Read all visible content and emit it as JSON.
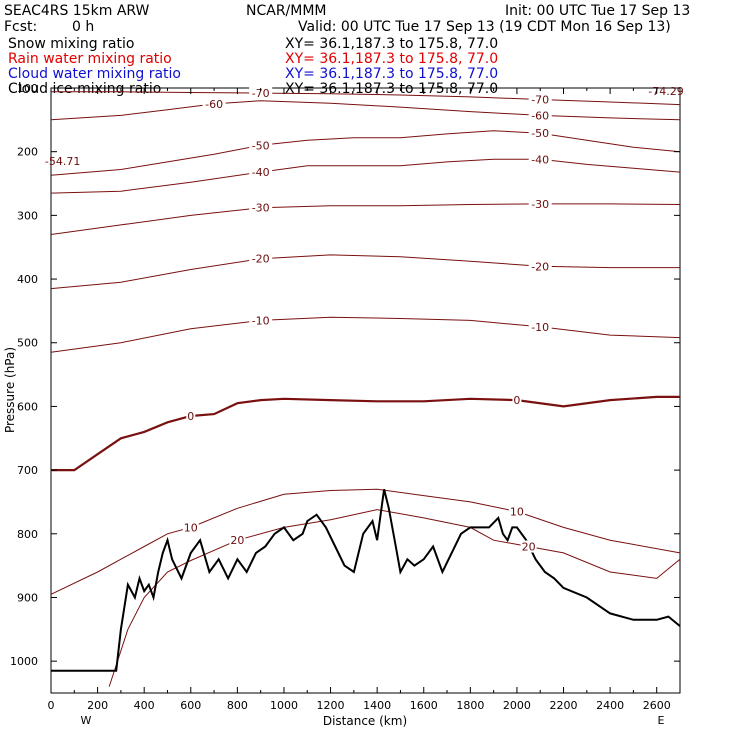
{
  "header": {
    "model": "SEAC4RS 15km ARW",
    "center": "NCAR/MMM",
    "init": "Init: 00 UTC Tue 17 Sep 13",
    "fcst_label": "Fcst:",
    "fcst_value": "0 h",
    "valid": "Valid: 00 UTC Tue 17 Sep 13 (19 CDT Mon 16 Sep 13)",
    "fields": [
      {
        "name": "Snow mixing ratio",
        "xy": "XY=  36.1,187.3 to 175.8, 77.0",
        "color": "#000000"
      },
      {
        "name": "Rain water mixing ratio",
        "xy": "XY=  36.1,187.3 to 175.8, 77.0",
        "color": "#e00000"
      },
      {
        "name": "Cloud water mixing ratio",
        "xy": "XY=  36.1,187.3 to 175.8, 77.0",
        "color": "#1010d0"
      },
      {
        "name": "Cloud ice mixing ratio",
        "xy": "XY=  36.1,187.3 to 175.8, 77.0",
        "color": "#000000"
      }
    ]
  },
  "chart_data": {
    "type": "line",
    "xlabel": "Distance (km)",
    "ylabel": "Pressure (hPa)",
    "xlim": [
      0,
      2700
    ],
    "ylim": [
      1050,
      100
    ],
    "x_ticks": [
      0,
      200,
      400,
      600,
      800,
      1000,
      1200,
      1400,
      1600,
      1800,
      2000,
      2200,
      2400,
      2600
    ],
    "y_ticks": [
      100,
      200,
      300,
      400,
      500,
      600,
      700,
      800,
      900,
      1000
    ],
    "x_end_labels": {
      "left": "W",
      "right": "E"
    },
    "extreme_labels": [
      {
        "text": "-74.29",
        "x": 2640,
        "p": 105
      },
      {
        "text": "-54.71",
        "x": 50,
        "p": 215
      }
    ],
    "isotherm_color": "#7a1010",
    "isotherms": [
      {
        "value": -70,
        "x": [
          0,
          300,
          600,
          900,
          1200,
          1500,
          1800,
          2100,
          2400,
          2700
        ],
        "p": [
          106,
          106,
          107,
          108,
          109,
          111,
          114,
          118,
          122,
          126
        ]
      },
      {
        "value": -60,
        "x": [
          0,
          300,
          500,
          700,
          900,
          1200,
          1500,
          1800,
          2100,
          2400,
          2700
        ],
        "p": [
          150,
          143,
          134,
          125,
          120,
          124,
          130,
          137,
          143,
          147,
          150
        ]
      },
      {
        "value": -50,
        "x": [
          0,
          300,
          500,
          700,
          900,
          1100,
          1300,
          1500,
          1700,
          1900,
          2100,
          2300,
          2500,
          2700
        ],
        "p": [
          237,
          228,
          216,
          204,
          190,
          182,
          178,
          178,
          172,
          167,
          171,
          182,
          193,
          200
        ]
      },
      {
        "value": -40,
        "x": [
          0,
          300,
          600,
          900,
          1100,
          1300,
          1500,
          1700,
          1900,
          2100,
          2300,
          2500,
          2700
        ],
        "p": [
          265,
          262,
          248,
          232,
          222,
          222,
          222,
          216,
          212,
          212,
          220,
          226,
          232
        ]
      },
      {
        "value": -30,
        "x": [
          0,
          300,
          600,
          900,
          1200,
          1500,
          1800,
          2100,
          2400,
          2700
        ],
        "p": [
          330,
          315,
          300,
          288,
          285,
          285,
          283,
          282,
          282,
          283
        ]
      },
      {
        "value": -20,
        "x": [
          0,
          300,
          600,
          900,
          1200,
          1500,
          1800,
          2100,
          2400,
          2700
        ],
        "p": [
          415,
          405,
          385,
          368,
          362,
          365,
          372,
          380,
          382,
          382
        ]
      },
      {
        "value": -10,
        "x": [
          0,
          300,
          600,
          900,
          1200,
          1500,
          1800,
          2100,
          2400,
          2700
        ],
        "p": [
          515,
          500,
          478,
          465,
          460,
          462,
          465,
          475,
          488,
          492
        ]
      },
      {
        "value": 0,
        "x": [
          0,
          100,
          200,
          300,
          400,
          500,
          600,
          700,
          800,
          900,
          1000,
          1200,
          1400,
          1600,
          1800,
          2000,
          2200,
          2400,
          2600,
          2700
        ],
        "p": [
          700,
          700,
          675,
          650,
          640,
          625,
          615,
          612,
          595,
          590,
          588,
          590,
          592,
          592,
          588,
          590,
          600,
          590,
          585,
          585
        ]
      },
      {
        "value": 10,
        "x": [
          0,
          200,
          400,
          500,
          600,
          800,
          1000,
          1200,
          1400,
          1600,
          1800,
          2000,
          2200,
          2400,
          2700
        ],
        "p": [
          895,
          860,
          820,
          800,
          790,
          760,
          738,
          732,
          730,
          740,
          750,
          765,
          790,
          810,
          830
        ]
      },
      {
        "value": 20,
        "x": [
          250,
          330,
          400,
          500,
          600,
          800,
          1000,
          1200,
          1400,
          1600,
          1800,
          1900,
          2050,
          2200,
          2400,
          2600,
          2700
        ],
        "p": [
          1040,
          950,
          900,
          860,
          842,
          810,
          790,
          778,
          762,
          775,
          790,
          810,
          820,
          830,
          860,
          870,
          840
        ]
      }
    ],
    "terrain": {
      "x": [
        0,
        280,
        300,
        330,
        360,
        380,
        400,
        420,
        440,
        460,
        480,
        500,
        520,
        560,
        600,
        640,
        680,
        720,
        760,
        800,
        840,
        880,
        920,
        960,
        1000,
        1040,
        1080,
        1100,
        1140,
        1180,
        1220,
        1260,
        1300,
        1340,
        1380,
        1400,
        1430,
        1450,
        1480,
        1500,
        1530,
        1560,
        1600,
        1640,
        1680,
        1720,
        1760,
        1800,
        1840,
        1880,
        1920,
        1940,
        1960,
        1980,
        2000,
        2040,
        2080,
        2120,
        2160,
        2200,
        2300,
        2400,
        2500,
        2600,
        2650,
        2700
      ],
      "p": [
        1015,
        1015,
        950,
        880,
        900,
        870,
        890,
        880,
        900,
        860,
        830,
        810,
        840,
        870,
        830,
        810,
        860,
        840,
        870,
        840,
        860,
        830,
        820,
        800,
        790,
        810,
        800,
        780,
        770,
        790,
        820,
        850,
        860,
        800,
        780,
        810,
        730,
        760,
        820,
        860,
        840,
        850,
        840,
        820,
        860,
        830,
        800,
        790,
        790,
        790,
        775,
        800,
        810,
        790,
        790,
        810,
        840,
        860,
        870,
        885,
        900,
        925,
        935,
        935,
        930,
        945
      ]
    }
  }
}
